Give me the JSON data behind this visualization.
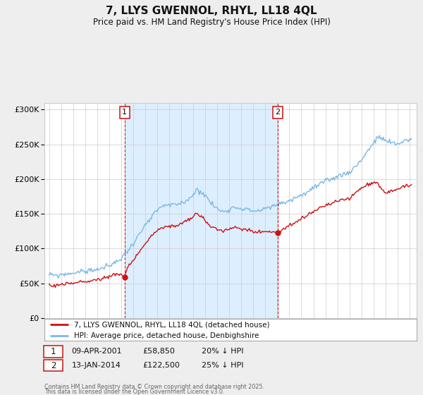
{
  "title": "7, LLYS GWENNOL, RHYL, LL18 4QL",
  "subtitle": "Price paid vs. HM Land Registry's House Price Index (HPI)",
  "legend_entry1": "7, LLYS GWENNOL, RHYL, LL18 4QL (detached house)",
  "legend_entry2": "HPI: Average price, detached house, Denbighshire",
  "footnote_line1": "Contains HM Land Registry data © Crown copyright and database right 2025.",
  "footnote_line2": "This data is licensed under the Open Government Licence v3.0.",
  "ann1_label": "1",
  "ann1_date": "09-APR-2001",
  "ann1_price": "£58,850",
  "ann1_hpi": "20% ↓ HPI",
  "ann2_label": "2",
  "ann2_date": "13-JAN-2014",
  "ann2_price": "£122,500",
  "ann2_hpi": "25% ↓ HPI",
  "sale1_x": 2001.27,
  "sale1_y": 58850,
  "sale2_x": 2014.04,
  "sale2_y": 122500,
  "vline1_x": 2001.27,
  "vline2_x": 2014.04,
  "ylim": [
    0,
    310000
  ],
  "yticks": [
    0,
    50000,
    100000,
    150000,
    200000,
    250000,
    300000
  ],
  "xlim_start": 1994.6,
  "xlim_end": 2025.6,
  "hpi_color": "#7ab8e8",
  "price_color": "#cc1111",
  "vline_color": "#cc1111",
  "shade_color": "#ddeeff",
  "bg_color": "#eeeeee",
  "plot_bg": "#ffffff",
  "grid_color": "#cccccc",
  "legend_border": "#aaaaaa"
}
